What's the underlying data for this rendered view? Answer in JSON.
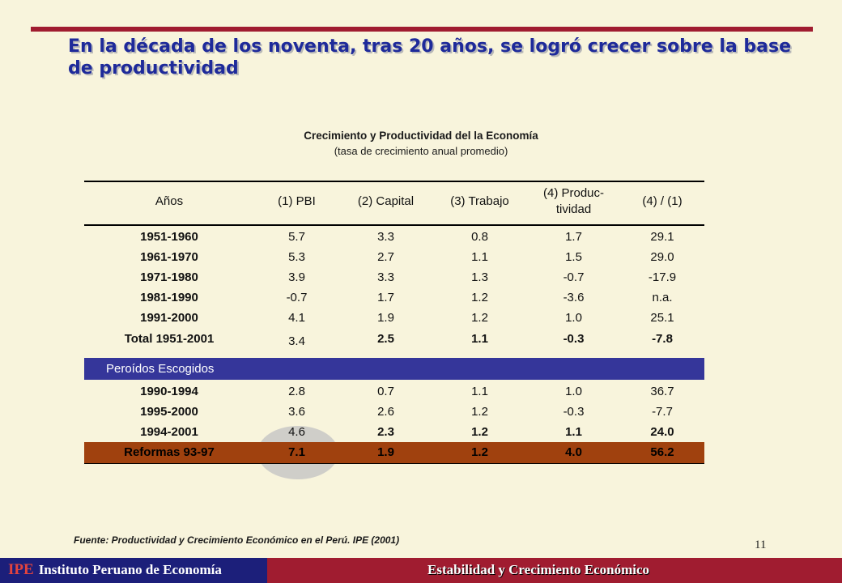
{
  "slide": {
    "title": "En la década de los noventa, tras 20 años, se logró crecer sobre la base de productividad",
    "page_number": "11"
  },
  "table": {
    "title": "Crecimiento y Productividad del la Economía",
    "subtitle": "(tasa de crecimiento anual promedio)",
    "headers": [
      "Años",
      "(1) PBI",
      "(2) Capital",
      "(3) Trabajo",
      "(4) Produc-\ntividad",
      "(4) / (1)"
    ],
    "rows": [
      [
        "1951-1960",
        "5.7",
        "3.3",
        "0.8",
        "1.7",
        "29.1"
      ],
      [
        "1961-1970",
        "5.3",
        "2.7",
        "1.1",
        "1.5",
        "29.0"
      ],
      [
        "1971-1980",
        "3.9",
        "3.3",
        "1.3",
        "-0.7",
        "-17.9"
      ],
      [
        "1981-1990",
        "-0.7",
        "1.7",
        "1.2",
        "-3.6",
        "n.a."
      ],
      [
        "1991-2000",
        "4.1",
        "1.9",
        "1.2",
        "1.0",
        "25.1"
      ],
      [
        "Total 1951-2001",
        "3.4",
        "2.5",
        "1.1",
        "-0.3",
        "-7.8"
      ]
    ],
    "section_label": "Peroídos Escogidos",
    "selected_rows": [
      [
        "1990-1994",
        "2.8",
        "0.7",
        "1.1",
        "1.0",
        "36.7"
      ],
      [
        "1995-2000",
        "3.6",
        "2.6",
        "1.2",
        "-0.3",
        "-7.7"
      ],
      [
        "1994-2001",
        "4.6",
        "2.3",
        "1.2",
        "1.1",
        "24.0"
      ],
      [
        "Reformas 93-97",
        "7.1",
        "1.9",
        "1.2",
        "4.0",
        "56.2"
      ]
    ]
  },
  "source": "Fuente: Productividad y Crecimiento Económico en el Perú. IPE (2001)",
  "footer": {
    "logo": "IPE",
    "org": "Instituto Peruano de Economía",
    "topic": "Estabilidad y Crecimiento Económico"
  },
  "colors": {
    "accent": "#a01c30",
    "navy": "#1c1f7a",
    "band": "#35369a",
    "reform": "#a0410e",
    "title": "#1e2a9a",
    "background": "#f8f4dc"
  }
}
